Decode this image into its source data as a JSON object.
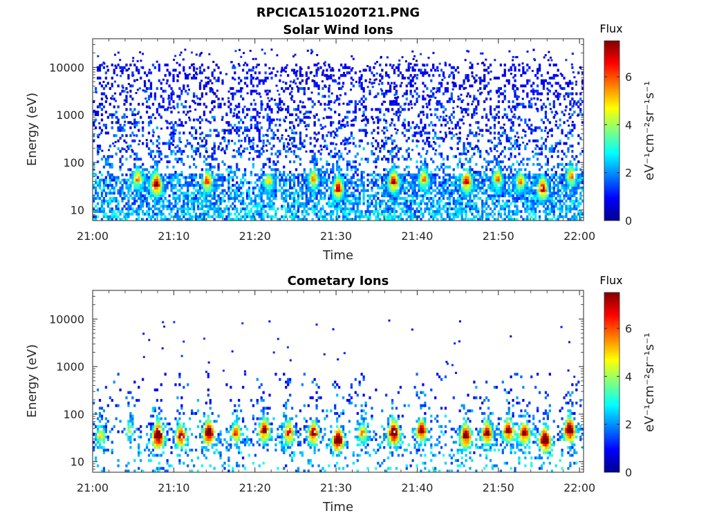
{
  "figure": {
    "title": "RPCICA151020T21.PNG"
  },
  "chart_data": [
    {
      "type": "heatmap",
      "title": "Solar Wind Ions",
      "xlabel": "Time",
      "ylabel": "Energy (eV)",
      "x_ticks": [
        "21:00",
        "21:10",
        "21:20",
        "21:30",
        "21:40",
        "21:50",
        "22:00"
      ],
      "xlim_minutes": [
        0,
        60.5
      ],
      "y_scale": "log",
      "ylim": [
        6,
        40000
      ],
      "y_ticks": [
        {
          "value": 10,
          "label": "10"
        },
        {
          "value": 100,
          "label": "100"
        },
        {
          "value": 1000,
          "label": "1000"
        },
        {
          "value": 10000,
          "label": "10000"
        }
      ],
      "colorbar": {
        "title": "Flux",
        "label": "eV⁻¹cm⁻²sr⁻¹s⁻¹",
        "range": [
          0,
          7.5
        ],
        "ticks": [
          "0",
          "2",
          "4",
          "6"
        ],
        "colormap": "jet"
      },
      "background_level": 0.6,
      "top_energy_cutoff": 12000,
      "sparse_high_energy": true,
      "bursts": [
        {
          "t": 5.5,
          "e": 40,
          "amp": 4.0
        },
        {
          "t": 7.8,
          "e": 30,
          "amp": 5.5
        },
        {
          "t": 14.0,
          "e": 35,
          "amp": 4.5
        },
        {
          "t": 21.5,
          "e": 35,
          "amp": 3.5
        },
        {
          "t": 27.0,
          "e": 40,
          "amp": 4.0
        },
        {
          "t": 30.0,
          "e": 25,
          "amp": 5.0
        },
        {
          "t": 36.8,
          "e": 35,
          "amp": 5.0
        },
        {
          "t": 40.5,
          "e": 40,
          "amp": 4.0
        },
        {
          "t": 45.7,
          "e": 35,
          "amp": 5.0
        },
        {
          "t": 49.5,
          "e": 40,
          "amp": 4.0
        },
        {
          "t": 52.3,
          "e": 35,
          "amp": 4.0
        },
        {
          "t": 55.0,
          "e": 25,
          "amp": 5.0
        },
        {
          "t": 58.5,
          "e": 45,
          "amp": 4.0
        }
      ]
    },
    {
      "type": "heatmap",
      "title": "Cometary Ions",
      "xlabel": "Time",
      "ylabel": "Energy (eV)",
      "x_ticks": [
        "21:00",
        "21:10",
        "21:20",
        "21:30",
        "21:40",
        "21:50",
        "22:00"
      ],
      "xlim_minutes": [
        0,
        60.5
      ],
      "y_scale": "log",
      "ylim": [
        6,
        40000
      ],
      "y_ticks": [
        {
          "value": 10,
          "label": "10"
        },
        {
          "value": 100,
          "label": "100"
        },
        {
          "value": 1000,
          "label": "1000"
        },
        {
          "value": 10000,
          "label": "10000"
        }
      ],
      "colorbar": {
        "title": "Flux",
        "label": "eV⁻¹cm⁻²sr⁻¹s⁻¹",
        "range": [
          0,
          7.5
        ],
        "ticks": [
          "0",
          "2",
          "4",
          "6"
        ],
        "colormap": "jet"
      },
      "background_level": 0.12,
      "top_energy_cutoff": 700,
      "sparse_high_energy": false,
      "bursts": [
        {
          "t": 1.0,
          "e": 30,
          "amp": 3.5
        },
        {
          "t": 4.5,
          "e": 40,
          "amp": 3.0
        },
        {
          "t": 8.0,
          "e": 30,
          "amp": 7.0
        },
        {
          "t": 10.8,
          "e": 30,
          "amp": 5.5
        },
        {
          "t": 14.2,
          "e": 35,
          "amp": 6.5
        },
        {
          "t": 17.5,
          "e": 35,
          "amp": 4.5
        },
        {
          "t": 21.0,
          "e": 40,
          "amp": 5.5
        },
        {
          "t": 24.0,
          "e": 35,
          "amp": 5.0
        },
        {
          "t": 27.0,
          "e": 35,
          "amp": 5.5
        },
        {
          "t": 30.0,
          "e": 25,
          "amp": 6.5
        },
        {
          "t": 33.0,
          "e": 35,
          "amp": 4.0
        },
        {
          "t": 36.8,
          "e": 35,
          "amp": 6.5
        },
        {
          "t": 40.2,
          "e": 40,
          "amp": 5.5
        },
        {
          "t": 45.6,
          "e": 30,
          "amp": 6.0
        },
        {
          "t": 48.2,
          "e": 35,
          "amp": 5.5
        },
        {
          "t": 50.8,
          "e": 40,
          "amp": 5.5
        },
        {
          "t": 52.8,
          "e": 35,
          "amp": 5.5
        },
        {
          "t": 55.3,
          "e": 25,
          "amp": 6.5
        },
        {
          "t": 58.3,
          "e": 40,
          "amp": 6.5
        }
      ]
    }
  ]
}
